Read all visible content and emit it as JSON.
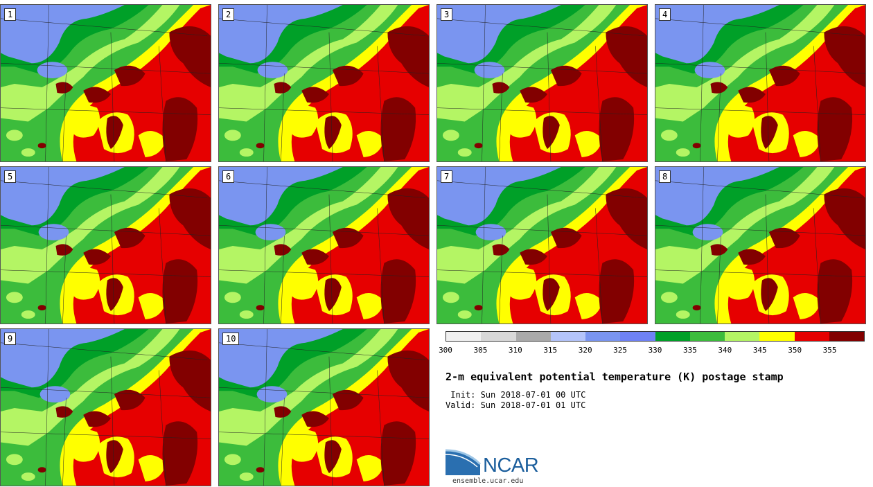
{
  "panels": [
    {
      "label": "1"
    },
    {
      "label": "2"
    },
    {
      "label": "3"
    },
    {
      "label": "4"
    },
    {
      "label": "5"
    },
    {
      "label": "6"
    },
    {
      "label": "7"
    },
    {
      "label": "8"
    },
    {
      "label": "9"
    },
    {
      "label": "10"
    }
  ],
  "colorbar": {
    "colors": [
      "#f0f0f0",
      "#d8d8d8",
      "#aaaaaa",
      "#b4c4fa",
      "#7a95f0",
      "#6f82f5",
      "#00a028",
      "#3cbc3c",
      "#b4f564",
      "#ffff00",
      "#e60000",
      "#820000"
    ],
    "ticks": [
      "300",
      "305",
      "310",
      "315",
      "320",
      "325",
      "330",
      "335",
      "340",
      "345",
      "350",
      "355"
    ]
  },
  "title": "2-m equivalent potential temperature (K) postage stamp",
  "init": " Init: Sun 2018-07-01 00 UTC",
  "valid": "Valid: Sun 2018-07-01 01 UTC",
  "logo": {
    "name": "NCAR",
    "url": "ensemble.ucar.edu"
  }
}
